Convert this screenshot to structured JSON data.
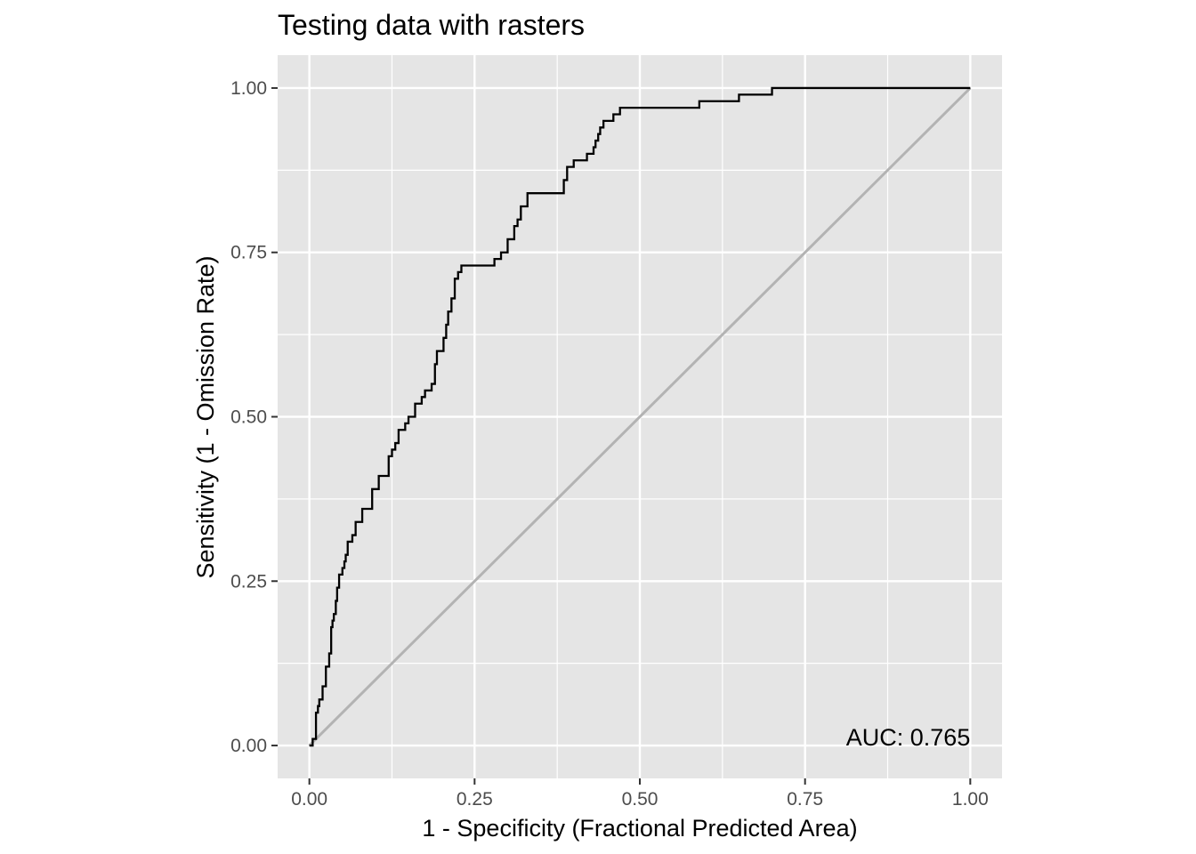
{
  "chart_data": {
    "type": "line",
    "title": "Testing data with rasters",
    "xlabel": "1 - Specificity (Fractional Predicted Area)",
    "ylabel": "Sensitivity (1 - Omission Rate)",
    "xlim": [
      -0.048,
      1.048
    ],
    "ylim": [
      -0.05,
      1.05
    ],
    "x_ticks": [
      0.0,
      0.25,
      0.5,
      0.75,
      1.0
    ],
    "x_tick_labels": [
      "0.00",
      "0.25",
      "0.50",
      "0.75",
      "1.00"
    ],
    "y_ticks": [
      0.0,
      0.25,
      0.5,
      0.75,
      1.0
    ],
    "y_tick_labels": [
      "0.00",
      "0.25",
      "0.50",
      "0.75",
      "1.00"
    ],
    "grid": true,
    "background_color": "#e5e5e5",
    "grid_color": "#ffffff",
    "annotation": {
      "text": "AUC: 0.765",
      "x": 1.0,
      "y": 0.0,
      "anchor": "end"
    },
    "series": [
      {
        "color": "#000000",
        "step": true,
        "x": [
          0.0,
          0.005,
          0.01,
          0.013,
          0.015,
          0.02,
          0.025,
          0.03,
          0.033,
          0.035,
          0.037,
          0.04,
          0.042,
          0.045,
          0.05,
          0.053,
          0.055,
          0.058,
          0.06,
          0.065,
          0.07,
          0.08,
          0.095,
          0.105,
          0.12,
          0.125,
          0.13,
          0.135,
          0.145,
          0.15,
          0.16,
          0.17,
          0.175,
          0.185,
          0.19,
          0.193,
          0.197,
          0.2,
          0.203,
          0.207,
          0.21,
          0.215,
          0.22,
          0.225,
          0.23,
          0.27,
          0.273,
          0.28,
          0.29,
          0.3,
          0.31,
          0.315,
          0.32,
          0.33,
          0.385,
          0.39,
          0.4,
          0.41,
          0.42,
          0.43,
          0.433,
          0.437,
          0.44,
          0.445,
          0.46,
          0.47,
          0.5,
          0.51,
          0.515,
          0.52,
          0.525,
          0.53,
          0.535,
          0.545,
          0.55,
          0.59,
          0.65,
          0.7,
          1.0
        ],
        "y": [
          0.0,
          0.01,
          0.05,
          0.06,
          0.07,
          0.09,
          0.12,
          0.14,
          0.18,
          0.19,
          0.2,
          0.22,
          0.24,
          0.26,
          0.27,
          0.28,
          0.29,
          0.31,
          0.31,
          0.32,
          0.34,
          0.36,
          0.39,
          0.41,
          0.44,
          0.45,
          0.46,
          0.48,
          0.49,
          0.5,
          0.52,
          0.53,
          0.54,
          0.55,
          0.58,
          0.6,
          0.6,
          0.6,
          0.62,
          0.64,
          0.66,
          0.68,
          0.71,
          0.72,
          0.73,
          0.73,
          0.73,
          0.74,
          0.75,
          0.77,
          0.79,
          0.8,
          0.82,
          0.84,
          0.86,
          0.88,
          0.89,
          0.89,
          0.9,
          0.91,
          0.92,
          0.93,
          0.94,
          0.95,
          0.96,
          0.97,
          0.97,
          0.97,
          0.97,
          0.97,
          0.97,
          0.97,
          0.97,
          0.97,
          0.97,
          0.98,
          0.99,
          1.0,
          1.0
        ]
      },
      {
        "color": "#b3b3b3",
        "step": false,
        "x": [
          0.0,
          1.0
        ],
        "y": [
          0.0,
          1.0
        ]
      }
    ]
  }
}
